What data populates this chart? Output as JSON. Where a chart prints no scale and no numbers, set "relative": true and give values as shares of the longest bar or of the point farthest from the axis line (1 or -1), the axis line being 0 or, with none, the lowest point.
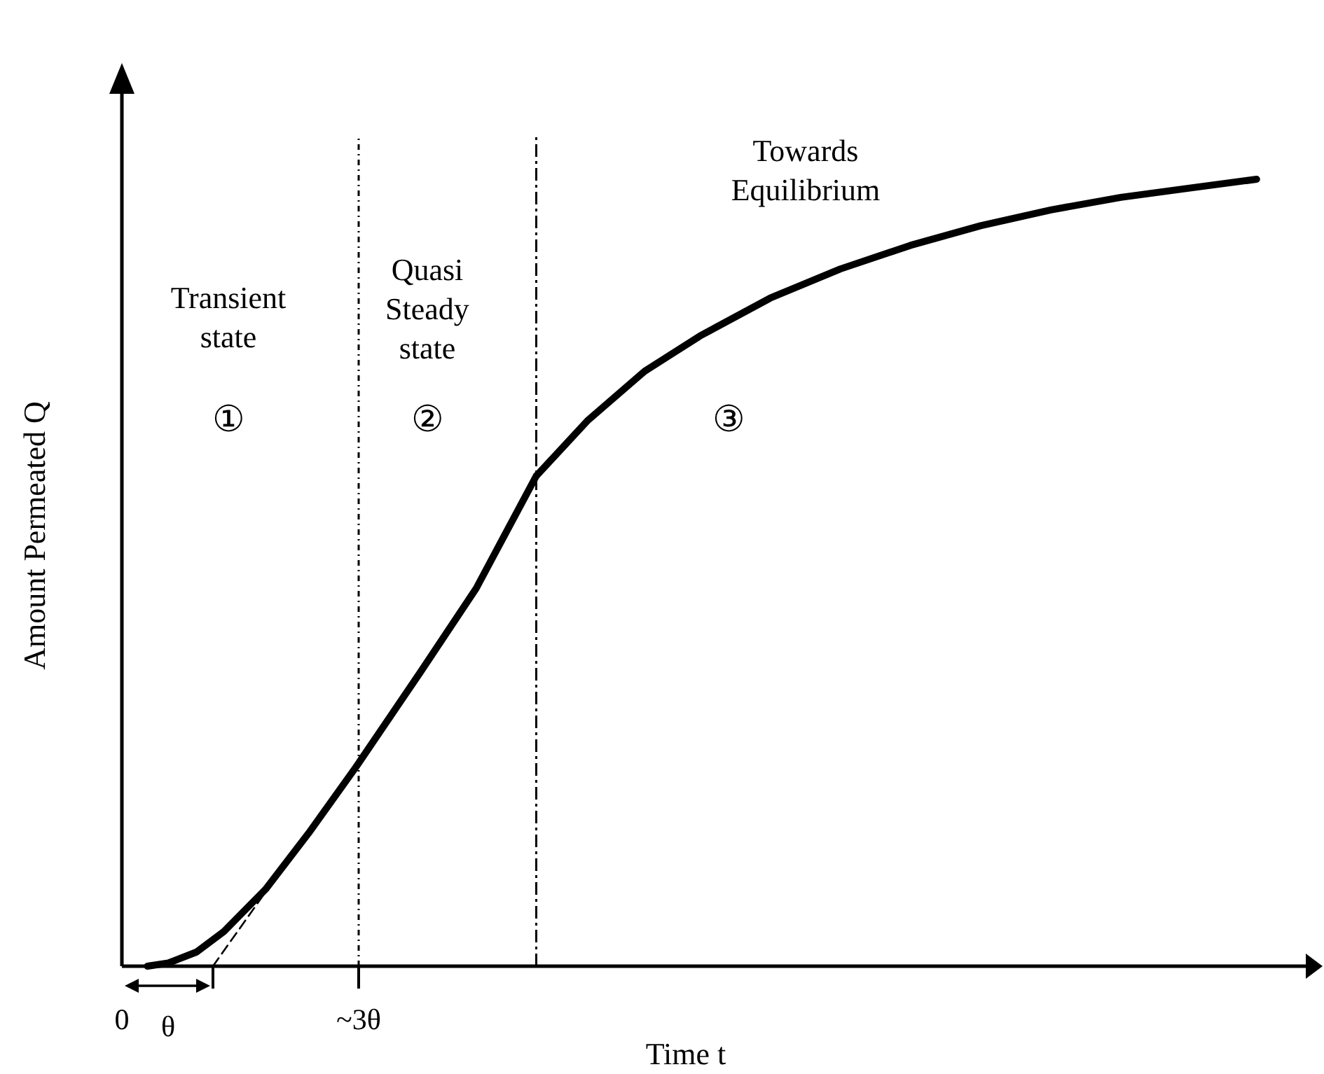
{
  "chart_data": {
    "type": "line",
    "relative": true,
    "xlabel": "Time t",
    "ylabel": "Amount Permeated Q",
    "xlim": [
      0,
      13
    ],
    "xticks": [
      {
        "value": 0,
        "label": "0"
      },
      {
        "value": 1,
        "label": null
      },
      {
        "value": 2.6,
        "label": "~3θ"
      }
    ],
    "series": [
      {
        "type": "line",
        "color": "#000000",
        "line_style": "solid",
        "x": [
          0.28,
          0.51,
          0.82,
          1.12,
          1.58,
          2.05,
          2.57,
          3.28,
          3.89,
          4.55,
          5.12,
          5.74,
          6.35,
          7.12,
          7.89,
          8.66,
          9.43,
          10.2,
          10.97,
          11.74,
          12.46
        ],
        "values": [
          0,
          0.004,
          0.018,
          0.044,
          0.098,
          0.169,
          0.253,
          0.374,
          0.48,
          0.623,
          0.694,
          0.756,
          0.801,
          0.849,
          0.886,
          0.916,
          0.941,
          0.961,
          0.977,
          0.989,
          1
        ]
      },
      {
        "type": "line",
        "color": "#000000",
        "line_style": "dashed",
        "x": [
          1,
          1.6
        ],
        "values": [
          0,
          0.098
        ]
      }
    ],
    "ref_lines": [
      {
        "axis": "x",
        "value": 2.6,
        "color": "#000000",
        "line_style": "dotted"
      },
      {
        "axis": "x",
        "value": 4.55,
        "color": "#000000",
        "line_style": "dashed"
      }
    ],
    "annotations": [
      "Transient state",
      "①",
      "Quasi Steady state",
      "②",
      "Towards Equilibrium",
      "③",
      "θ"
    ]
  }
}
